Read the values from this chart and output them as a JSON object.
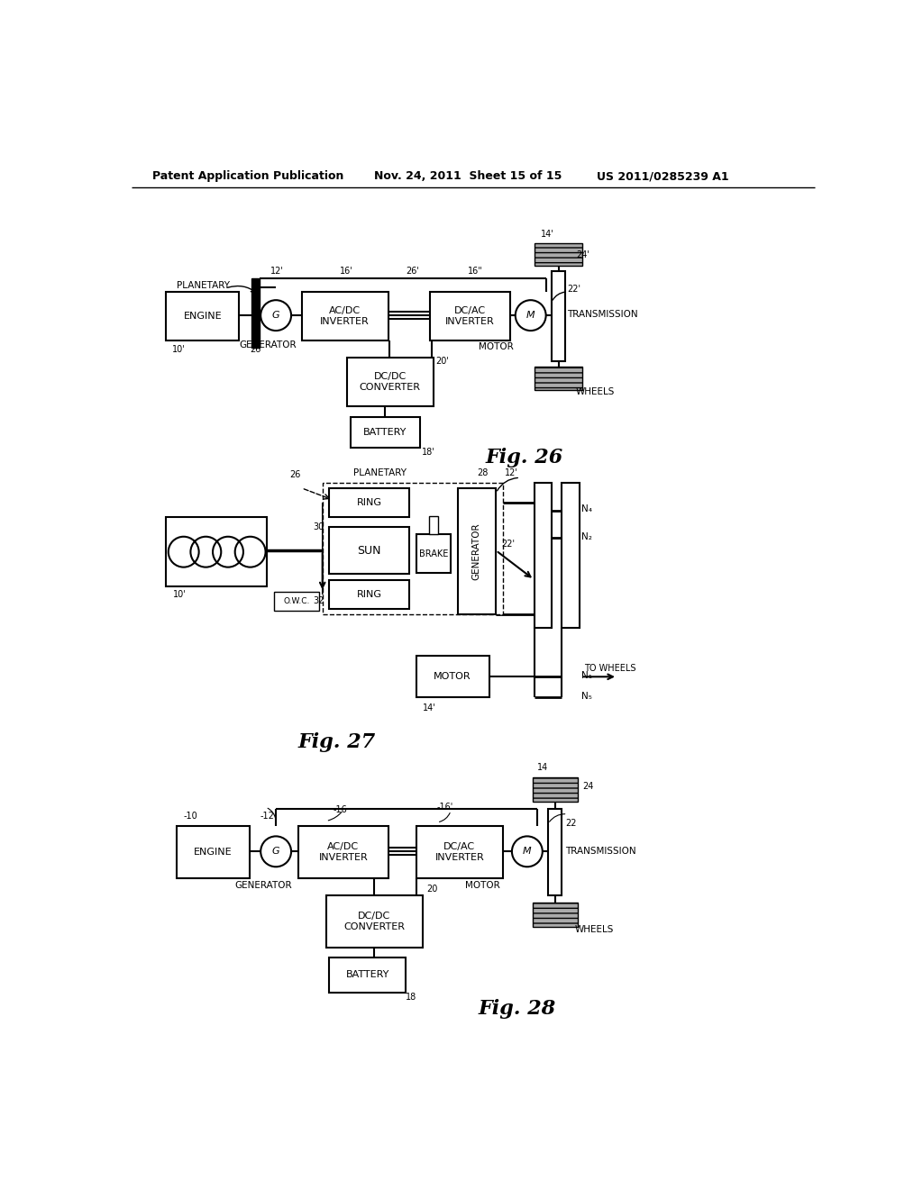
{
  "header_left": "Patent Application Publication",
  "header_mid": "Nov. 24, 2011  Sheet 15 of 15",
  "header_right": "US 2011/0285239 A1",
  "bg_color": "#ffffff"
}
